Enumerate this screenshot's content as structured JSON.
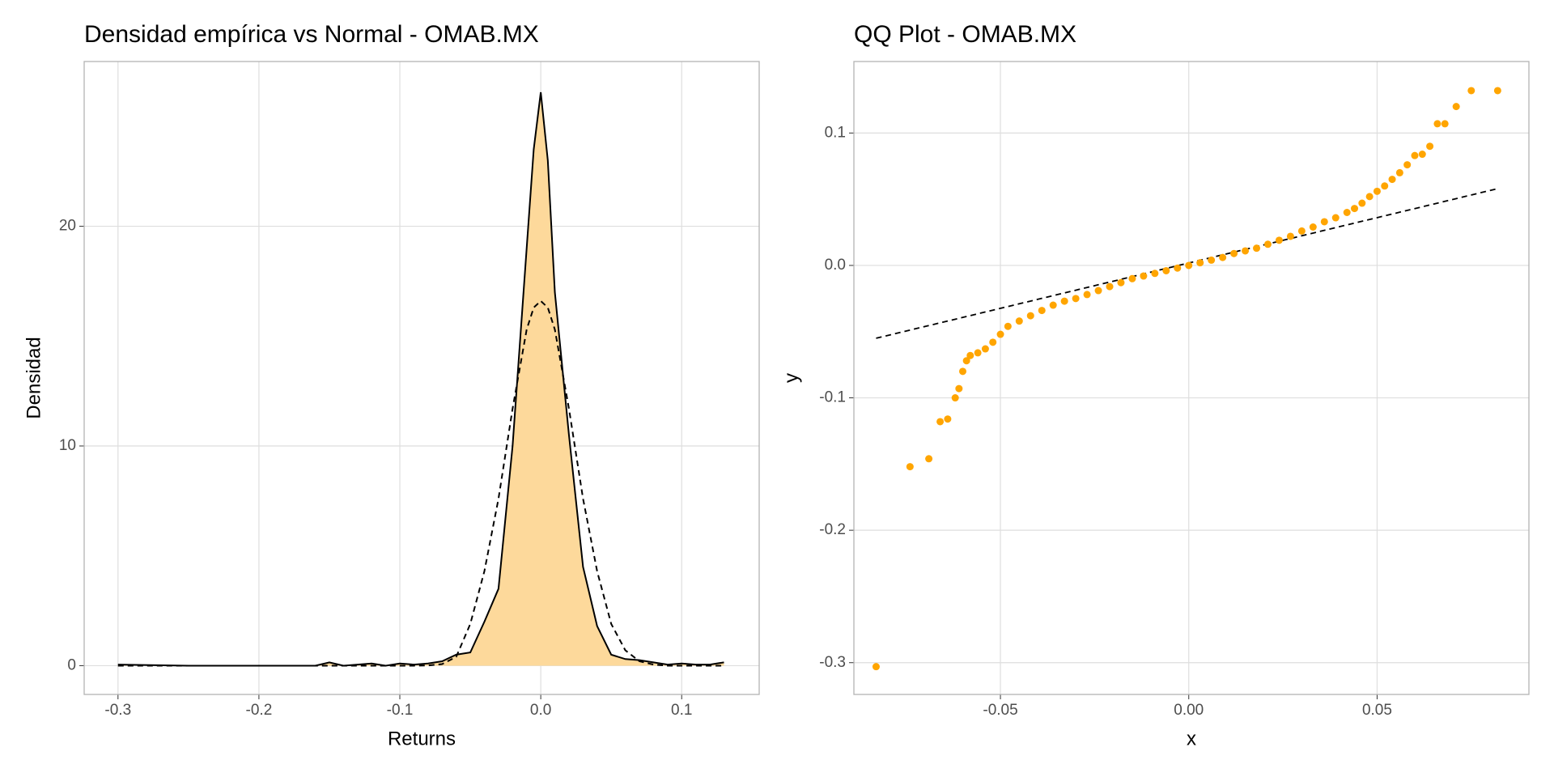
{
  "chart_data": [
    {
      "type": "area",
      "title": "Densidad empírica vs Normal - OMAB.MX",
      "x_label": "Returns",
      "y_label": "Densidad",
      "x": [
        -0.3,
        -0.25,
        -0.2,
        -0.16,
        -0.15,
        -0.14,
        -0.12,
        -0.11,
        -0.1,
        -0.09,
        -0.08,
        -0.07,
        -0.06,
        -0.05,
        -0.04,
        -0.03,
        -0.02,
        -0.01,
        -0.005,
        0,
        0.005,
        0.01,
        0.02,
        0.03,
        0.04,
        0.05,
        0.06,
        0.07,
        0.08,
        0.09,
        0.1,
        0.11,
        0.12,
        0.13
      ],
      "series": [
        {
          "color": "#fdd99b",
          "line_color": "#000000",
          "fill": true,
          "values": [
            0.05,
            0,
            0,
            0,
            0.15,
            0,
            0.1,
            0,
            0.1,
            0.05,
            0.1,
            0.2,
            0.5,
            0.6,
            2.0,
            3.5,
            10,
            19,
            23.5,
            26.1,
            23,
            17,
            10.5,
            4.5,
            1.8,
            0.5,
            0.3,
            0.25,
            0.15,
            0.05,
            0.1,
            0.05,
            0.05,
            0.15
          ]
        },
        {
          "color": "#000000",
          "dash": true,
          "fill": false,
          "values": [
            0,
            0,
            0,
            0,
            0,
            0,
            0,
            0,
            0,
            0,
            0.01,
            0.07,
            0.4,
            1.9,
            4.3,
            7.6,
            11.7,
            15.3,
            16.3,
            16.6,
            16.3,
            15.3,
            11.7,
            7.6,
            4.3,
            1.9,
            0.7,
            0.2,
            0.05,
            0,
            0,
            0,
            0,
            0
          ]
        }
      ],
      "xlim": [
        -0.324,
        0.155
      ],
      "ylim": [
        -1.31,
        27.5
      ],
      "xticks": [
        -0.3,
        -0.2,
        -0.1,
        {
          "value": 0,
          "label": "0.0"
        },
        0.1
      ],
      "yticks": [
        0,
        10,
        20
      ],
      "grid": true
    },
    {
      "type": "scatter",
      "title": "QQ Plot - OMAB.MX",
      "x_label": "x",
      "y_label": "y",
      "series": [
        {
          "color": "#ffa500",
          "x": [
            -0.083,
            -0.074,
            -0.069,
            -0.066,
            -0.064,
            -0.062,
            -0.061,
            -0.06,
            -0.059,
            -0.058,
            -0.056,
            -0.054,
            -0.052,
            -0.05,
            -0.048,
            -0.045,
            -0.042,
            -0.039,
            -0.036,
            -0.033,
            -0.03,
            -0.027,
            -0.024,
            -0.021,
            -0.018,
            -0.015,
            -0.012,
            -0.009,
            -0.006,
            -0.003,
            0,
            0.003,
            0.006,
            0.009,
            0.012,
            0.015,
            0.018,
            0.021,
            0.024,
            0.027,
            0.03,
            0.033,
            0.036,
            0.039,
            0.042,
            0.044,
            0.046,
            0.048,
            0.05,
            0.052,
            0.054,
            0.056,
            0.058,
            0.06,
            0.062,
            0.064,
            0.066,
            0.068,
            0.071,
            0.075,
            0.082
          ],
          "values": [
            -0.303,
            -0.152,
            -0.146,
            -0.118,
            -0.116,
            -0.1,
            -0.093,
            -0.08,
            -0.072,
            -0.068,
            -0.066,
            -0.063,
            -0.058,
            -0.052,
            -0.046,
            -0.042,
            -0.038,
            -0.034,
            -0.03,
            -0.027,
            -0.025,
            -0.022,
            -0.019,
            -0.016,
            -0.013,
            -0.01,
            -0.008,
            -0.006,
            -0.004,
            -0.002,
            0,
            0.002,
            0.004,
            0.006,
            0.009,
            0.011,
            0.013,
            0.016,
            0.019,
            0.022,
            0.026,
            0.029,
            0.033,
            0.036,
            0.04,
            0.043,
            0.047,
            0.052,
            0.056,
            0.06,
            0.065,
            0.07,
            0.076,
            0.083,
            0.084,
            0.09,
            0.107,
            0.107,
            0.12,
            0.132,
            0.132
          ]
        }
      ],
      "reference_line": {
        "color": "#000000",
        "dash": true,
        "x": [
          -0.083,
          0.082
        ],
        "y": [
          -0.055,
          0.058
        ]
      },
      "xlim": [
        -0.0889,
        0.0903
      ],
      "ylim": [
        -0.324,
        0.154
      ],
      "xticks": [
        -0.05,
        {
          "value": 0,
          "label": "0.00"
        },
        0.05
      ],
      "yticks": [
        -0.3,
        -0.2,
        -0.1,
        {
          "value": 0,
          "label": "0.0"
        },
        0.1
      ],
      "grid": true
    }
  ]
}
